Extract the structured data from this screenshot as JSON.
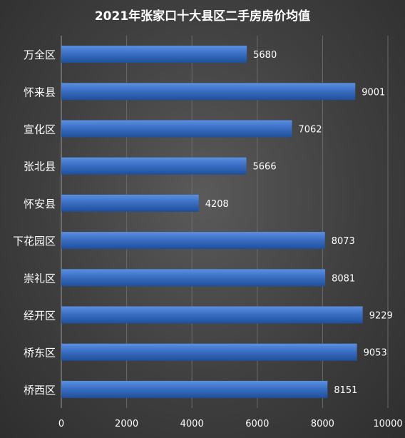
{
  "chart_data": {
    "type": "bar",
    "orientation": "horizontal",
    "title": "2021年张家口十大县区二手房房价均值",
    "categories": [
      "万全区",
      "怀来县",
      "宣化区",
      "张北县",
      "怀安县",
      "下花园区",
      "崇礼区",
      "经开区",
      "桥东区",
      "桥西区"
    ],
    "values": [
      5680,
      9001,
      7062,
      5666,
      4208,
      8073,
      8081,
      9229,
      9053,
      8151
    ],
    "xlim": [
      0,
      10000
    ],
    "xticks": [
      "0",
      "2000",
      "4000",
      "6000",
      "8000",
      "10000"
    ],
    "grid": true,
    "legend": "none",
    "colors": {
      "bar": "#3a6fc4",
      "bar_light": "#5b8fe0",
      "bar_dark": "#1f4f9a",
      "text": "#ffffff",
      "grid": "#6a6a6a"
    }
  }
}
